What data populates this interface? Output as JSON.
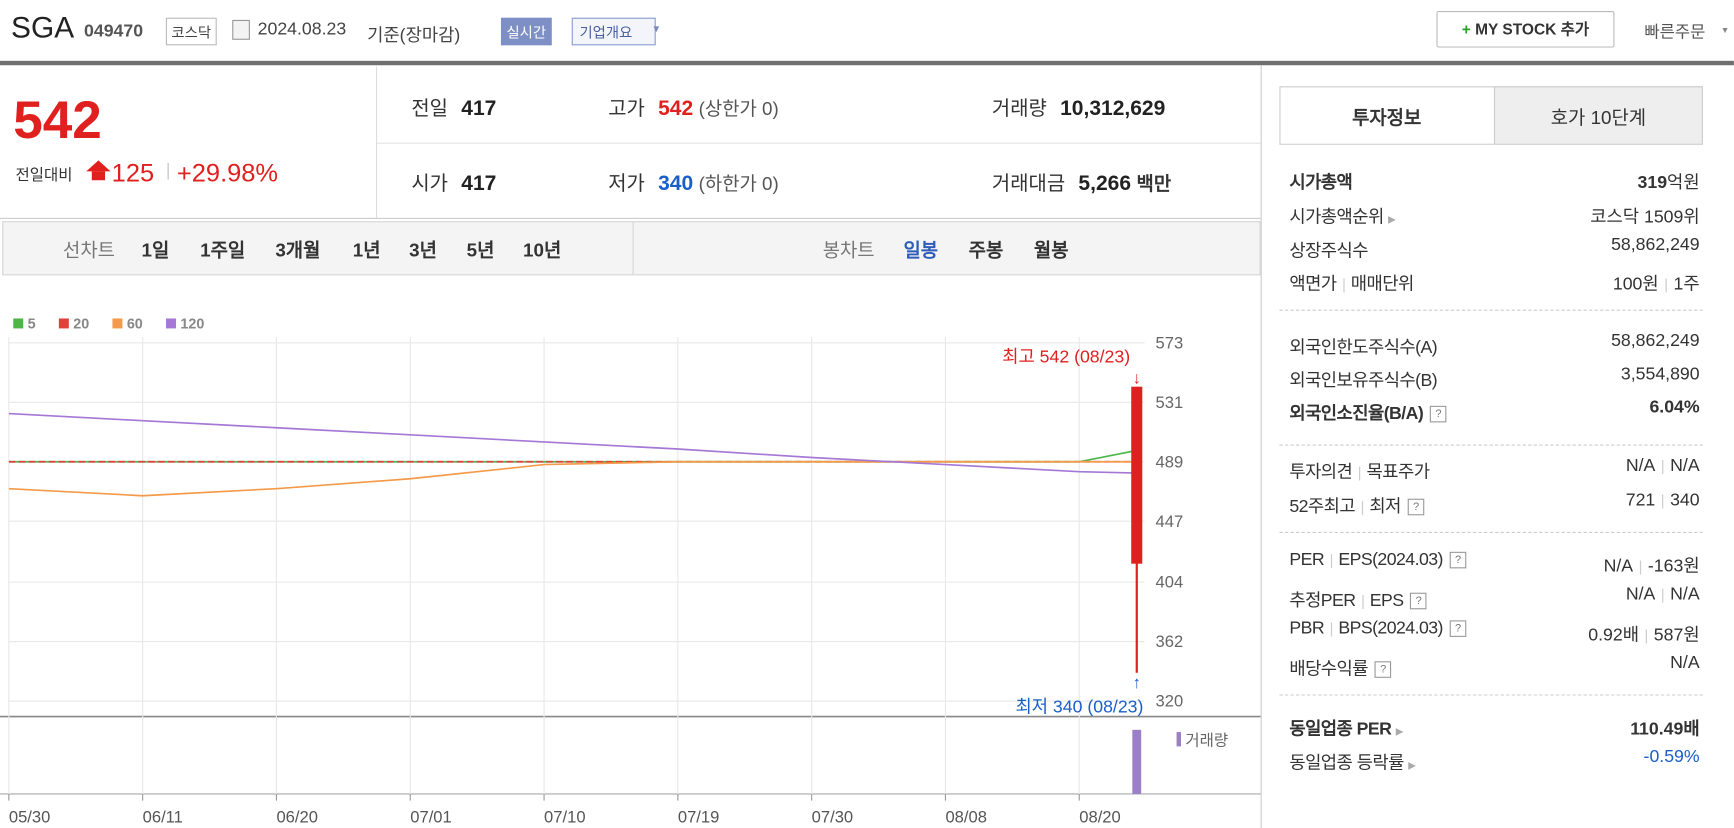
{
  "header": {
    "name": "SGA",
    "code": "049470",
    "market": "코스닥",
    "date": "2024.08.23",
    "basis": "기준(장마감)",
    "realtime": "실시간",
    "overview": "기업개요",
    "my_stock": "MY STOCK 추가",
    "quick_order": "빠른주문"
  },
  "price": {
    "current": "542",
    "change_label": "전일대비",
    "change": "125",
    "rate": "+29.98%",
    "color": "#e0201f"
  },
  "quote": [
    {
      "label": "전일",
      "value": "417"
    },
    {
      "label": "고가",
      "value": "542",
      "extra": "(상한가 0)",
      "color": "#e0201f"
    },
    {
      "label": "거래량",
      "value": "10,312,629"
    },
    {
      "label": "시가",
      "value": "417"
    },
    {
      "label": "저가",
      "value": "340",
      "extra": "(하한가 0)",
      "color": "#1a5fc9"
    },
    {
      "label": "거래대금",
      "value": "5,266",
      "extra": "백만"
    }
  ],
  "periods": {
    "line_label": "선차트",
    "line": [
      "1일",
      "1주일",
      "3개월",
      "1년",
      "3년",
      "5년",
      "10년"
    ],
    "candle_label": "봉차트",
    "candle": [
      "일봉",
      "주봉",
      "월봉"
    ],
    "active_candle": 0
  },
  "chart": {
    "type": "candlestick",
    "series": [
      {
        "name": "5",
        "color": "#4cb648",
        "values": [
          489,
          489,
          489,
          489,
          489,
          489,
          489,
          489,
          489
        ],
        "end": 497
      },
      {
        "name": "20",
        "color": "#e0403a",
        "dashed": true,
        "values": [
          489,
          489,
          489,
          489,
          489,
          489,
          489,
          489,
          489
        ],
        "end": 489
      },
      {
        "name": "60",
        "color": "#f59a4a",
        "values": [
          470,
          465,
          470,
          477,
          487,
          489,
          489,
          489,
          489
        ],
        "end": 489
      },
      {
        "name": "120",
        "color": "#a678d6",
        "values": [
          523,
          518,
          513,
          508,
          503,
          498,
          492,
          487,
          482
        ],
        "end": 481
      }
    ],
    "xticks": [
      "05/30",
      "06/11",
      "06/20",
      "07/01",
      "07/10",
      "07/19",
      "07/30",
      "08/08",
      "08/20"
    ],
    "ylim": [
      320,
      573
    ],
    "yticks": [
      320,
      362,
      404,
      447,
      489,
      531,
      573
    ],
    "candle": {
      "open": 417,
      "high": 542,
      "low": 340,
      "close": 542,
      "color": "#e0201f"
    },
    "high_label": "최고 542 (08/23)",
    "low_label": "최저 340 (08/23)",
    "volume_label": "거래량",
    "volume_color": "#9b80c8"
  },
  "side": {
    "tabs": [
      "투자정보",
      "호가 10단계"
    ],
    "sections": [
      [
        {
          "label": [
            "시가총액"
          ],
          "value": [
            "319"
          ],
          "unit": "억원",
          "bold": true
        },
        {
          "label": [
            "시가총액순위"
          ],
          "more": true,
          "value": [
            "코스닥 1509위"
          ]
        },
        {
          "label": [
            "상장주식수"
          ],
          "value": [
            "58,862,249"
          ]
        },
        {
          "label": [
            "액면가",
            "매매단위"
          ],
          "value": [
            "100원",
            "1주"
          ]
        }
      ],
      [
        {
          "label": [
            "외국인한도주식수(A)"
          ],
          "value": [
            "58,862,249"
          ]
        },
        {
          "label": [
            "외국인보유주식수(B)"
          ],
          "value": [
            "3,554,890"
          ]
        },
        {
          "label": [
            "외국인소진율(B/A)"
          ],
          "help": true,
          "value": [
            "6.04%"
          ],
          "bold": true
        }
      ],
      [
        {
          "label": [
            "투자의견",
            "목표주가"
          ],
          "value": [
            "N/A",
            "N/A"
          ]
        },
        {
          "label": [
            "52주최고",
            "최저"
          ],
          "help": true,
          "value": [
            "721",
            "340"
          ]
        }
      ],
      [
        {
          "label": [
            "PER",
            "EPS(2024.03)"
          ],
          "help": true,
          "value": [
            "N/A",
            "-163원"
          ]
        },
        {
          "label": [
            "추정PER",
            "EPS"
          ],
          "help": true,
          "value": [
            "N/A",
            "N/A"
          ]
        },
        {
          "label": [
            "PBR",
            "BPS(2024.03)"
          ],
          "help": true,
          "value": [
            "0.92배",
            "587원"
          ]
        },
        {
          "label": [
            "배당수익률"
          ],
          "help": true,
          "value": [
            "N/A"
          ]
        }
      ],
      [
        {
          "label": [
            "동일업종 PER"
          ],
          "more": true,
          "value": [
            "110.49배"
          ],
          "bold": true
        },
        {
          "label": [
            "동일업종 등락률"
          ],
          "more": true,
          "value": [
            "-0.59%"
          ],
          "color": "#1a5fc9"
        }
      ]
    ]
  }
}
